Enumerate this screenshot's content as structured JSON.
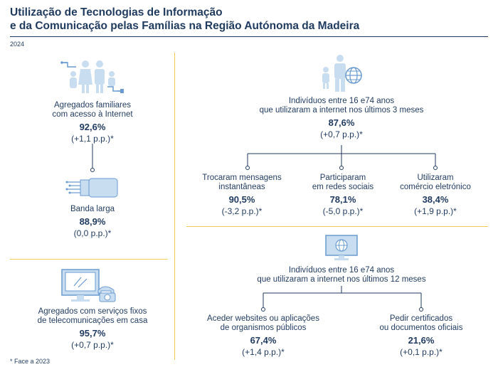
{
  "header": {
    "title_line1": "Utilização de Tecnologias de Informação",
    "title_line2": "e da Comunicação pelas Famílias na Região Autónoma da Madeira",
    "year": "2024"
  },
  "left": {
    "households_internet": {
      "label1": "Agregados familiares",
      "label2": "com acesso à Internet",
      "value": "92,6%",
      "change": "(+1,1 p.p.)*"
    },
    "broadband": {
      "label": "Banda larga",
      "value": "88,9%",
      "change": "(0,0 p.p.)*"
    },
    "telecom": {
      "label1": "Agregados com serviços fixos",
      "label2": "de telecomunicações em casa",
      "value": "95,7%",
      "change": "(+0,7 p.p.)*"
    }
  },
  "right": {
    "internet_3m": {
      "label1": "Indivíduos entre 16 e74 anos",
      "label2": "que utilizaram a internet nos últimos 3 meses",
      "value": "87,6%",
      "change": "(+0,7 p.p.)*"
    },
    "messaging": {
      "label1": "Trocaram mensagens",
      "label2": "instantâneas",
      "value": "90,5%",
      "change": "(-3,2 p.p.)*"
    },
    "social": {
      "label1": "Participaram",
      "label2": "em redes sociais",
      "value": "78,1%",
      "change": "(-5,0 p.p.)*"
    },
    "ecommerce": {
      "label1": "Utilizaram",
      "label2": "comércio eletrónico",
      "value": "38,4%",
      "change": "(+1,9 p.p.)*"
    },
    "internet_12m": {
      "label1": "Indivíduos entre 16 e74 anos",
      "label2": "que utilizaram a internet nos últimos 12 meses"
    },
    "public_sites": {
      "label1": "Aceder websites ou aplicações",
      "label2": "de organismos públicos",
      "value": "67,4%",
      "change": "(+1,4 p.p.)*"
    },
    "certificates": {
      "label1": "Pedir certificados",
      "label2": "ou documentos oficiais",
      "value": "21,6%",
      "change": "(+0,1 p.p.)*"
    }
  },
  "footnote": "* Face a 2023",
  "colors": {
    "navy": "#1f3a5f",
    "icon_blue": "#6a9bd0",
    "icon_light": "#c9ddf1",
    "separator": "#f2cd5a"
  }
}
